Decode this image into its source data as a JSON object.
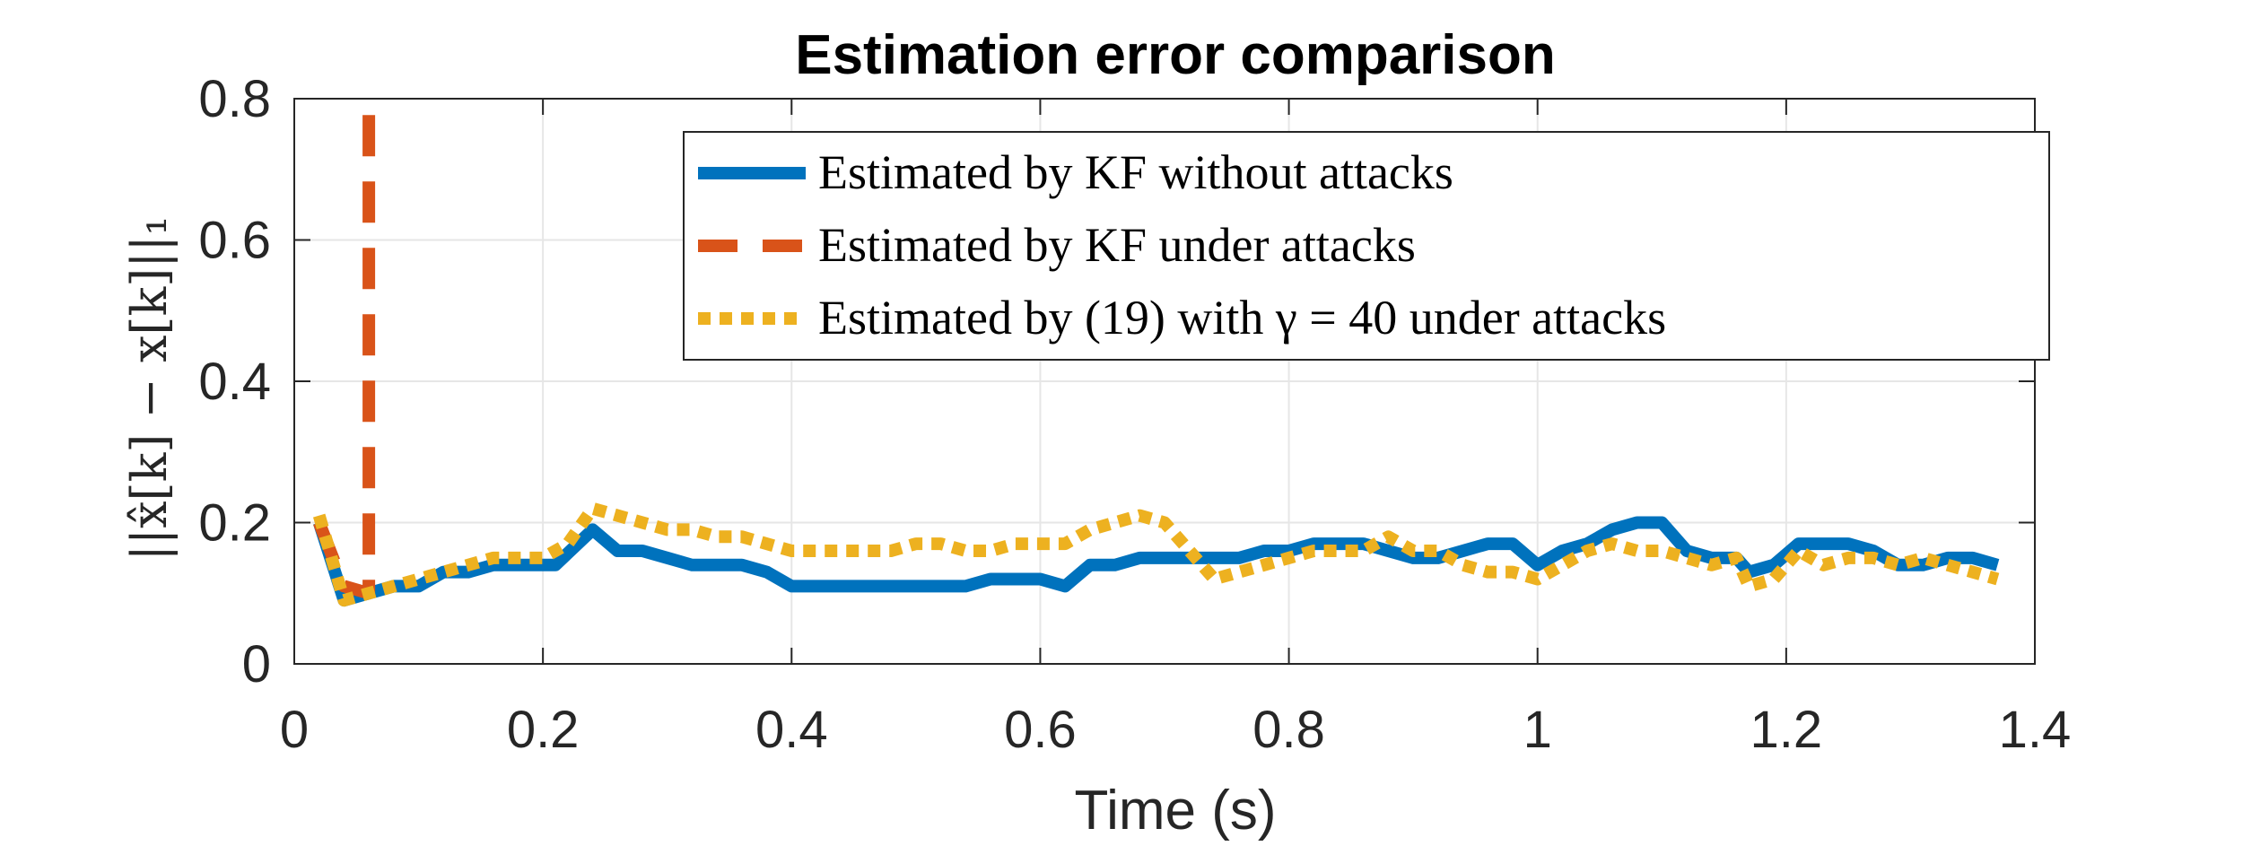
{
  "chart_data": {
    "type": "line",
    "title": "Estimation error comparison",
    "xlabel": "Time (s)",
    "ylabel": "||x̂[k] − x[k]||₁",
    "xlim": [
      0,
      1.4
    ],
    "ylim": [
      0,
      0.8
    ],
    "x_ticks": [
      0,
      0.2,
      0.4,
      0.6,
      0.8,
      1,
      1.2,
      1.4
    ],
    "x_tick_labels": [
      "0",
      "0.2",
      "0.4",
      "0.6",
      "0.8",
      "1",
      "1.2",
      "1.4"
    ],
    "y_ticks": [
      0,
      0.2,
      0.4,
      0.6,
      0.8
    ],
    "y_tick_labels": [
      "0",
      "0.2",
      "0.4",
      "0.6",
      "0.8"
    ],
    "grid": true,
    "legend_position": "top-right",
    "series": [
      {
        "name": "Estimated by KF without attacks",
        "color": "#0072BD",
        "style": "solid",
        "x": [
          0.02,
          0.04,
          0.06,
          0.08,
          0.1,
          0.12,
          0.14,
          0.16,
          0.18,
          0.2,
          0.21,
          0.24,
          0.26,
          0.28,
          0.3,
          0.32,
          0.34,
          0.36,
          0.38,
          0.4,
          0.41,
          0.45,
          0.48,
          0.5,
          0.52,
          0.54,
          0.56,
          0.58,
          0.6,
          0.62,
          0.64,
          0.66,
          0.68,
          0.7,
          0.72,
          0.74,
          0.76,
          0.78,
          0.8,
          0.82,
          0.84,
          0.86,
          0.88,
          0.9,
          0.92,
          0.94,
          0.96,
          0.98,
          1.0,
          1.02,
          1.04,
          1.06,
          1.08,
          1.1,
          1.12,
          1.14,
          1.16,
          1.17,
          1.19,
          1.21,
          1.23,
          1.25,
          1.27,
          1.29,
          1.31,
          1.33,
          1.35,
          1.37
        ],
        "values": [
          0.2,
          0.09,
          0.1,
          0.11,
          0.11,
          0.13,
          0.13,
          0.14,
          0.14,
          0.14,
          0.14,
          0.19,
          0.16,
          0.16,
          0.15,
          0.14,
          0.14,
          0.14,
          0.13,
          0.11,
          0.11,
          0.11,
          0.11,
          0.11,
          0.11,
          0.11,
          0.12,
          0.12,
          0.12,
          0.11,
          0.14,
          0.14,
          0.15,
          0.15,
          0.15,
          0.15,
          0.15,
          0.16,
          0.16,
          0.17,
          0.17,
          0.17,
          0.16,
          0.15,
          0.15,
          0.16,
          0.17,
          0.17,
          0.14,
          0.16,
          0.17,
          0.19,
          0.2,
          0.2,
          0.16,
          0.15,
          0.15,
          0.13,
          0.14,
          0.17,
          0.17,
          0.17,
          0.16,
          0.14,
          0.14,
          0.15,
          0.15,
          0.14
        ]
      },
      {
        "name": "Estimated by KF under attacks",
        "color": "#D95319",
        "style": "dashed",
        "x": [
          0.02,
          0.04,
          0.06,
          0.06
        ],
        "values": [
          0.2,
          0.11,
          0.1,
          0.8
        ]
      },
      {
        "name": "Estimated by (19) with γ = 40 under attacks",
        "color": "#EDB120",
        "style": "dotted",
        "x": [
          0.02,
          0.04,
          0.06,
          0.08,
          0.1,
          0.12,
          0.14,
          0.16,
          0.18,
          0.2,
          0.22,
          0.24,
          0.26,
          0.28,
          0.3,
          0.32,
          0.34,
          0.36,
          0.38,
          0.4,
          0.42,
          0.44,
          0.46,
          0.48,
          0.5,
          0.52,
          0.54,
          0.56,
          0.58,
          0.6,
          0.62,
          0.64,
          0.66,
          0.68,
          0.7,
          0.72,
          0.74,
          0.76,
          0.78,
          0.8,
          0.82,
          0.84,
          0.86,
          0.88,
          0.9,
          0.92,
          0.94,
          0.96,
          0.98,
          1.0,
          1.02,
          1.04,
          1.06,
          1.08,
          1.1,
          1.12,
          1.14,
          1.16,
          1.17,
          1.19,
          1.21,
          1.23,
          1.25,
          1.27,
          1.29,
          1.31,
          1.33,
          1.35,
          1.37
        ],
        "values": [
          0.21,
          0.09,
          0.1,
          0.11,
          0.12,
          0.13,
          0.14,
          0.15,
          0.15,
          0.15,
          0.17,
          0.22,
          0.21,
          0.2,
          0.19,
          0.19,
          0.18,
          0.18,
          0.17,
          0.16,
          0.16,
          0.16,
          0.16,
          0.16,
          0.17,
          0.17,
          0.16,
          0.16,
          0.17,
          0.17,
          0.17,
          0.19,
          0.2,
          0.21,
          0.2,
          0.16,
          0.12,
          0.13,
          0.14,
          0.15,
          0.16,
          0.16,
          0.16,
          0.18,
          0.16,
          0.16,
          0.14,
          0.13,
          0.13,
          0.12,
          0.14,
          0.16,
          0.17,
          0.16,
          0.16,
          0.15,
          0.14,
          0.15,
          0.11,
          0.12,
          0.16,
          0.14,
          0.15,
          0.15,
          0.14,
          0.15,
          0.14,
          0.13,
          0.12
        ]
      }
    ]
  }
}
